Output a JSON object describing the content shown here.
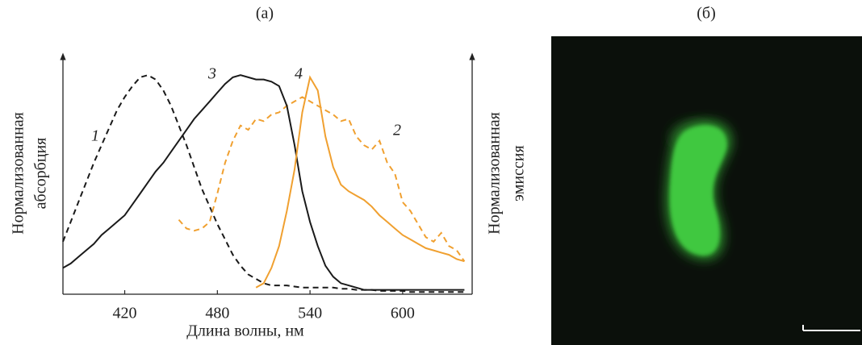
{
  "chart_data": {
    "type": "line",
    "title": "(а)",
    "xlabel": "Длина волны, нм",
    "ylabel": [
      "Нормализованная",
      "абсорбция"
    ],
    "y2label": [
      "Нормализованная",
      "эмиссия"
    ],
    "x": [
      380,
      385,
      390,
      395,
      400,
      405,
      410,
      415,
      420,
      425,
      430,
      435,
      440,
      445,
      450,
      455,
      460,
      465,
      470,
      475,
      480,
      485,
      490,
      495,
      500,
      505,
      510,
      515,
      520,
      525,
      530,
      535,
      540,
      545,
      550,
      555,
      560,
      565,
      570,
      575,
      580,
      585,
      590,
      595,
      600,
      605,
      610,
      615,
      620,
      625,
      630,
      635,
      640
    ],
    "xlim": [
      380,
      645
    ],
    "xticks": [
      420,
      480,
      540,
      600
    ],
    "ylim": [
      0,
      1.1
    ],
    "series": [
      {
        "name": "1",
        "color": "#1a1a1a",
        "style": "dashed",
        "values": [
          0.24,
          0.33,
          0.42,
          0.51,
          0.6,
          0.68,
          0.76,
          0.84,
          0.9,
          0.95,
          0.99,
          1.0,
          0.98,
          0.93,
          0.86,
          0.77,
          0.68,
          0.58,
          0.48,
          0.4,
          0.32,
          0.25,
          0.18,
          0.13,
          0.09,
          0.07,
          0.05,
          0.04,
          0.04,
          0.04,
          0.035,
          0.03,
          0.03,
          0.03,
          0.03,
          0.03,
          0.025,
          0.025,
          0.02,
          0.02,
          0.02,
          0.015,
          0.015,
          0.015,
          0.015,
          0.01,
          0.01,
          0.01,
          0.01,
          0.01,
          0.01,
          0.01,
          0.01
        ]
      },
      {
        "name": "2",
        "color": "#f0a030",
        "style": "dashed",
        "values": [
          null,
          null,
          null,
          null,
          null,
          null,
          null,
          null,
          null,
          null,
          null,
          null,
          null,
          null,
          null,
          0.34,
          0.3,
          0.29,
          0.3,
          0.33,
          0.46,
          0.6,
          0.7,
          0.77,
          0.75,
          0.8,
          0.79,
          0.82,
          0.83,
          0.86,
          0.88,
          0.9,
          0.88,
          0.86,
          0.84,
          0.82,
          0.79,
          0.8,
          0.72,
          0.68,
          0.66,
          0.7,
          0.6,
          0.55,
          0.42,
          0.38,
          0.32,
          0.26,
          0.24,
          0.28,
          0.22,
          0.2,
          0.15
        ]
      },
      {
        "name": "3",
        "color": "#1a1a1a",
        "style": "solid",
        "values": [
          0.12,
          0.14,
          0.17,
          0.2,
          0.23,
          0.27,
          0.3,
          0.33,
          0.36,
          0.41,
          0.46,
          0.51,
          0.56,
          0.6,
          0.65,
          0.7,
          0.75,
          0.8,
          0.84,
          0.88,
          0.92,
          0.96,
          0.99,
          1.0,
          0.99,
          0.98,
          0.98,
          0.97,
          0.95,
          0.86,
          0.68,
          0.47,
          0.33,
          0.22,
          0.13,
          0.08,
          0.05,
          0.04,
          0.03,
          0.02,
          0.02,
          0.02,
          0.02,
          0.02,
          0.02,
          0.02,
          0.02,
          0.02,
          0.02,
          0.02,
          0.02,
          0.02,
          0.02
        ]
      },
      {
        "name": "4",
        "color": "#f0a030",
        "style": "solid",
        "values": [
          null,
          null,
          null,
          null,
          null,
          null,
          null,
          null,
          null,
          null,
          null,
          null,
          null,
          null,
          null,
          null,
          null,
          null,
          null,
          null,
          null,
          null,
          null,
          null,
          null,
          0.03,
          0.05,
          0.12,
          0.22,
          0.38,
          0.57,
          0.83,
          0.99,
          0.93,
          0.72,
          0.58,
          0.5,
          0.47,
          0.45,
          0.43,
          0.4,
          0.36,
          0.33,
          0.3,
          0.27,
          0.25,
          0.23,
          0.21,
          0.2,
          0.19,
          0.18,
          0.16,
          0.15
        ]
      }
    ]
  },
  "image": {
    "title": "(б)"
  }
}
